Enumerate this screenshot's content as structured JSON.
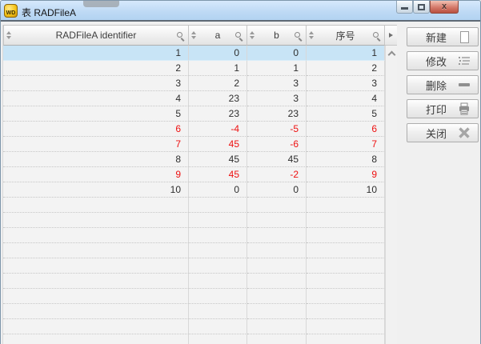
{
  "window": {
    "title": "表 RADFileA",
    "app_icon_label": "WD",
    "controls": {
      "minimize_icon": "minimize-icon",
      "maximize_icon": "maximize-icon",
      "close_icon": "close-icon",
      "close_glyph": "x"
    }
  },
  "table": {
    "columns": [
      {
        "label": "RADFileA identifier",
        "sort_icon": "sort-arrows-icon",
        "search_icon": "search-icon"
      },
      {
        "label": "a",
        "sort_icon": "sort-arrows-icon",
        "search_icon": "search-icon"
      },
      {
        "label": "b",
        "sort_icon": "sort-arrows-icon",
        "search_icon": "search-icon"
      },
      {
        "label": "序号",
        "sort_icon": "sort-arrows-icon",
        "search_icon": "search-icon"
      }
    ],
    "header_more_icon": "expand-columns-icon",
    "scroll_up_icon": "scroll-up-icon",
    "rows": [
      {
        "values": [
          "1",
          "0",
          "0",
          "1"
        ],
        "selected": true,
        "negative": false
      },
      {
        "values": [
          "2",
          "1",
          "1",
          "2"
        ],
        "selected": false,
        "negative": false
      },
      {
        "values": [
          "3",
          "2",
          "3",
          "3"
        ],
        "selected": false,
        "negative": false
      },
      {
        "values": [
          "4",
          "23",
          "3",
          "4"
        ],
        "selected": false,
        "negative": false
      },
      {
        "values": [
          "5",
          "23",
          "23",
          "5"
        ],
        "selected": false,
        "negative": false
      },
      {
        "values": [
          "6",
          "-4",
          "-5",
          "6"
        ],
        "selected": false,
        "negative": true
      },
      {
        "values": [
          "7",
          "45",
          "-6",
          "7"
        ],
        "selected": false,
        "negative": true
      },
      {
        "values": [
          "8",
          "45",
          "45",
          "8"
        ],
        "selected": false,
        "negative": false
      },
      {
        "values": [
          "9",
          "45",
          "-2",
          "9"
        ],
        "selected": false,
        "negative": true
      },
      {
        "values": [
          "10",
          "0",
          "0",
          "10"
        ],
        "selected": false,
        "negative": false
      }
    ]
  },
  "side_buttons": [
    {
      "label": "新建",
      "icon": "new-record-icon"
    },
    {
      "label": "修改",
      "icon": "edit-record-icon"
    },
    {
      "label": "删除",
      "icon": "delete-record-icon"
    },
    {
      "label": "打印",
      "icon": "print-icon"
    },
    {
      "label": "关闭",
      "icon": "close-window-icon"
    }
  ],
  "colors": {
    "titlebar_blue": "#bfdaf5",
    "selected_row": "#c8e4f6",
    "negative_value_text": "#ee1111",
    "close_button_red": "#d4796a",
    "button_text": "#3c3c3c"
  }
}
